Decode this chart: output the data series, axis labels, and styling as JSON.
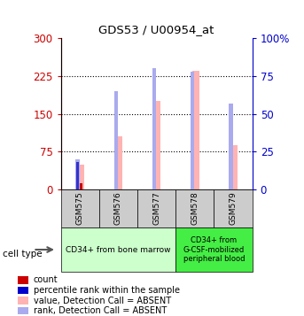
{
  "title": "GDS53 / U00954_at",
  "samples": [
    "GSM575",
    "GSM576",
    "GSM577",
    "GSM578",
    "GSM579"
  ],
  "value_absent": [
    50,
    105,
    175,
    235,
    88
  ],
  "rank_absent_pct": [
    20,
    65,
    80,
    78,
    57
  ],
  "count_present": [
    12,
    0,
    0,
    0,
    0
  ],
  "rank_present_pct": [
    18,
    0,
    0,
    0,
    0
  ],
  "ylim": [
    0,
    300
  ],
  "yticks_left": [
    0,
    75,
    150,
    225,
    300
  ],
  "ytick_labels_left": [
    "0",
    "75",
    "150",
    "225",
    "300"
  ],
  "ytick_labels_right": [
    "0",
    "25",
    "50",
    "75",
    "100%"
  ],
  "left_axis_color": "#cc0000",
  "right_axis_color": "#0000cc",
  "color_value_absent": "#ffb3b3",
  "color_rank_absent": "#aaaaee",
  "color_count": "#cc0000",
  "color_rank_present": "#3333cc",
  "group1_label": "CD34+ from bone marrow",
  "group2_label": "CD34+ from\nG-CSF-mobilized\nperipheral blood",
  "group1_color": "#ccffcc",
  "group2_color": "#44ee44",
  "sample_box_color": "#cccccc",
  "legend_items": [
    {
      "label": "count",
      "color": "#cc0000"
    },
    {
      "label": "percentile rank within the sample",
      "color": "#0000cc"
    },
    {
      "label": "value, Detection Call = ABSENT",
      "color": "#ffb3b3"
    },
    {
      "label": "rank, Detection Call = ABSENT",
      "color": "#aaaaee"
    }
  ]
}
